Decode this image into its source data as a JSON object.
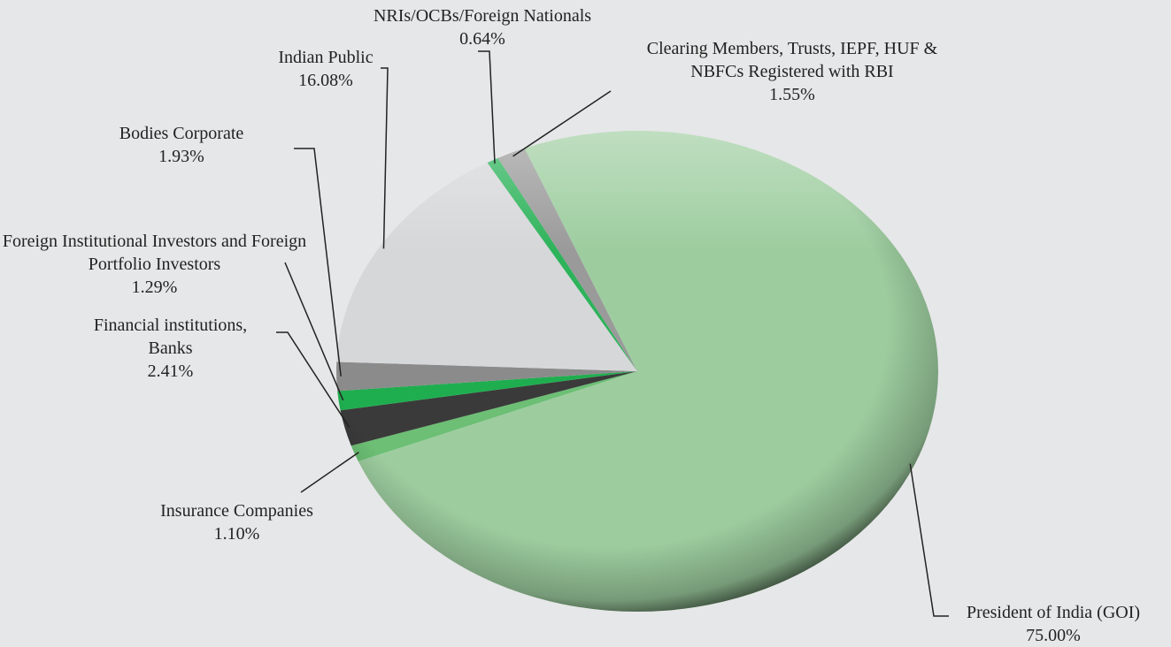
{
  "chart_data": {
    "type": "pie",
    "categories": [
      "President of India (GOI)",
      "Insurance Companies",
      "Financial institutions, Banks",
      "Foreign Institutional Investors and Foreign Portfolio Investors",
      "Bodies Corporate",
      "Indian Public",
      "NRIs/OCBs/Foreign Nationals",
      "Clearing Members, Trusts, IEPF, HUF & NBFCs Registered with RBI"
    ],
    "values": [
      75.0,
      1.1,
      2.41,
      1.29,
      1.93,
      16.08,
      0.64,
      1.55
    ],
    "value_labels": [
      "75.00%",
      "1.10%",
      "2.41%",
      "1.29%",
      "1.93%",
      "16.08%",
      "0.64%",
      "1.55%"
    ],
    "colors": [
      "#9dcd9f",
      "#6cbf74",
      "#3a3a3a",
      "#1fae4f",
      "#8b8b8b",
      "#d6d7d9",
      "#2db35a",
      "#9a9a9a"
    ]
  }
}
